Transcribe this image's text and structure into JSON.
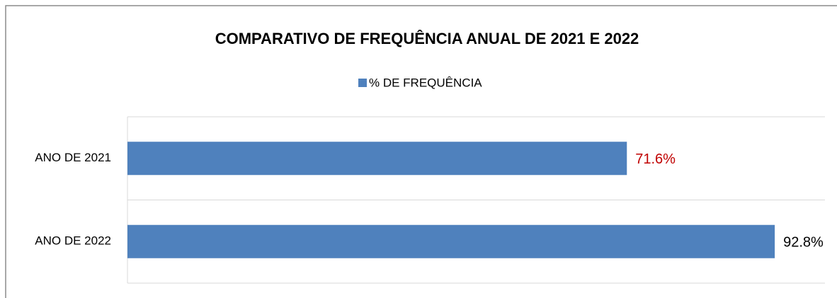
{
  "chart_data": {
    "type": "bar",
    "orientation": "horizontal",
    "title": "COMPARATIVO DE FREQUÊNCIA ANUAL DE 2021 E 2022",
    "categories": [
      "ANO DE 2021",
      "ANO DE 2022"
    ],
    "series": [
      {
        "name": "% DE FREQUÊNCIA",
        "color": "#4f81bd",
        "values": [
          71.6,
          92.8
        ],
        "value_labels": [
          "71.6%",
          "92.8%"
        ],
        "value_label_colors": [
          "#c00000",
          "#000000"
        ]
      }
    ],
    "xlim": [
      0,
      100
    ],
    "legend": "top"
  }
}
